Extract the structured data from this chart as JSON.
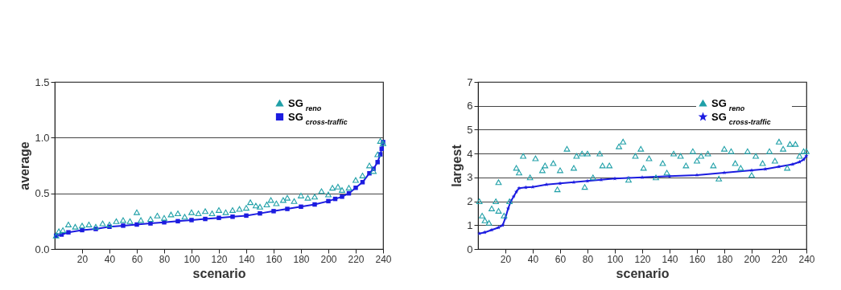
{
  "chart_data": [
    {
      "type": "scatter",
      "xlabel": "scenario",
      "ylabel": "average",
      "xlim": [
        0,
        240
      ],
      "xticks": [
        20,
        40,
        60,
        80,
        100,
        120,
        140,
        160,
        180,
        200,
        220,
        240
      ],
      "ylim": [
        0,
        1.5
      ],
      "yticks": [
        {
          "value": 0,
          "label": "0.0"
        },
        {
          "value": 0.5,
          "label": "0.5"
        },
        {
          "value": 1,
          "label": "1.0"
        },
        {
          "value": 1.5,
          "label": "1.5"
        }
      ],
      "grid": "y",
      "legend": "top right",
      "series": [
        {
          "name": "SG$_{reno}$",
          "type": "scatter",
          "marker": "triangle",
          "color": "#20a0a8",
          "x": [
            1,
            3,
            6,
            10,
            15,
            20,
            25,
            30,
            35,
            40,
            45,
            50,
            55,
            60,
            63,
            70,
            75,
            80,
            85,
            90,
            95,
            100,
            105,
            110,
            115,
            120,
            125,
            130,
            135,
            140,
            143,
            147,
            150,
            155,
            158,
            162,
            167,
            170,
            175,
            180,
            185,
            190,
            195,
            200,
            203,
            207,
            210,
            215,
            220,
            225,
            230,
            233,
            236,
            238,
            240
          ],
          "values": [
            0.12,
            0.16,
            0.17,
            0.22,
            0.2,
            0.21,
            0.22,
            0.2,
            0.23,
            0.22,
            0.25,
            0.26,
            0.25,
            0.33,
            0.26,
            0.27,
            0.3,
            0.28,
            0.31,
            0.32,
            0.29,
            0.33,
            0.32,
            0.34,
            0.32,
            0.35,
            0.33,
            0.35,
            0.36,
            0.37,
            0.42,
            0.39,
            0.38,
            0.4,
            0.44,
            0.41,
            0.44,
            0.46,
            0.43,
            0.48,
            0.46,
            0.47,
            0.52,
            0.49,
            0.55,
            0.56,
            0.53,
            0.55,
            0.62,
            0.66,
            0.75,
            0.7,
            0.85,
            0.97,
            0.95
          ]
        },
        {
          "name": "SG$_{cross-traffic}$",
          "type": "line",
          "marker": "square",
          "color": "#1c1ce0",
          "x": [
            1,
            5,
            10,
            20,
            30,
            40,
            50,
            60,
            70,
            80,
            90,
            100,
            110,
            120,
            130,
            140,
            150,
            160,
            170,
            180,
            190,
            200,
            205,
            210,
            215,
            220,
            225,
            230,
            233,
            236,
            238,
            239,
            240
          ],
          "values": [
            0.12,
            0.13,
            0.15,
            0.17,
            0.18,
            0.2,
            0.21,
            0.22,
            0.23,
            0.24,
            0.25,
            0.26,
            0.27,
            0.28,
            0.29,
            0.3,
            0.32,
            0.34,
            0.36,
            0.38,
            0.4,
            0.43,
            0.45,
            0.47,
            0.5,
            0.55,
            0.6,
            0.68,
            0.72,
            0.78,
            0.85,
            0.9,
            0.96
          ]
        }
      ]
    },
    {
      "type": "scatter",
      "xlabel": "scenario",
      "ylabel": "largest",
      "xlim": [
        0,
        240
      ],
      "xticks": [
        20,
        40,
        60,
        80,
        100,
        120,
        140,
        160,
        180,
        200,
        220,
        240
      ],
      "ylim": [
        0,
        7
      ],
      "yticks": [
        0,
        1,
        2,
        3,
        4,
        5,
        6,
        7
      ],
      "grid": "y",
      "legend": "top right",
      "series": [
        {
          "name": "SG$_{reno}$",
          "type": "scatter",
          "marker": "triangle",
          "color": "#20a0a8",
          "x": [
            1,
            3,
            5,
            8,
            10,
            13,
            15,
            15,
            19,
            23,
            28,
            30,
            33,
            38,
            42,
            47,
            49,
            55,
            58,
            60,
            65,
            70,
            72,
            76,
            78,
            80,
            84,
            89,
            91,
            96,
            103,
            106,
            110,
            115,
            119,
            121,
            125,
            130,
            135,
            138,
            143,
            148,
            152,
            157,
            160,
            163,
            168,
            172,
            176,
            180,
            185,
            188,
            192,
            197,
            200,
            203,
            208,
            213,
            217,
            220,
            223,
            226,
            228,
            232,
            235,
            238,
            240
          ],
          "values": [
            2.0,
            1.4,
            1.2,
            1.1,
            1.7,
            2.0,
            1.6,
            2.8,
            1.4,
            2.0,
            3.4,
            3.2,
            3.9,
            3.0,
            3.8,
            3.3,
            3.5,
            3.6,
            2.5,
            3.3,
            4.2,
            3.4,
            3.9,
            4.0,
            2.6,
            4.0,
            3.0,
            4.0,
            3.5,
            3.5,
            4.3,
            4.5,
            2.9,
            3.9,
            4.2,
            3.4,
            3.8,
            3.0,
            3.6,
            3.2,
            4.0,
            3.9,
            3.5,
            4.1,
            3.7,
            3.9,
            4.0,
            3.5,
            2.95,
            4.2,
            4.1,
            3.6,
            3.4,
            4.1,
            3.1,
            3.9,
            3.6,
            4.1,
            3.7,
            4.5,
            4.2,
            3.4,
            4.4,
            4.4,
            3.9,
            4.1,
            4.1
          ]
        },
        {
          "name": "SG$_{cross-traffic}$",
          "type": "line",
          "marker": "star",
          "color": "#1c1ce0",
          "x": [
            1,
            5,
            10,
            15,
            18,
            20,
            22,
            24,
            26,
            28,
            30,
            35,
            40,
            50,
            60,
            70,
            80,
            90,
            100,
            110,
            120,
            140,
            160,
            180,
            200,
            210,
            220,
            230,
            235,
            238,
            240
          ],
          "values": [
            0.65,
            0.7,
            0.8,
            0.9,
            1.0,
            1.3,
            1.7,
            2.0,
            2.2,
            2.4,
            2.55,
            2.58,
            2.6,
            2.7,
            2.75,
            2.8,
            2.85,
            2.9,
            2.95,
            2.98,
            3.0,
            3.05,
            3.1,
            3.2,
            3.3,
            3.35,
            3.45,
            3.55,
            3.65,
            3.75,
            3.9
          ]
        }
      ]
    }
  ]
}
